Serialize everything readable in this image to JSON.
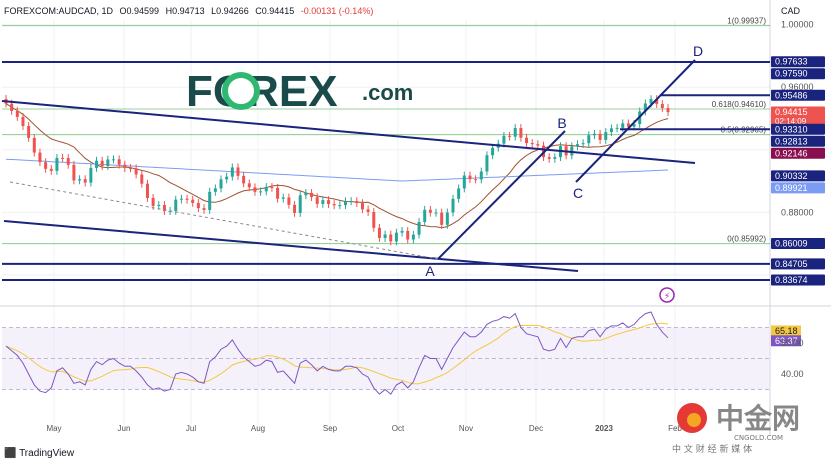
{
  "header": {
    "symbol": "FOREXCOM:AUDCAD, 1D",
    "open": "O0.94599",
    "high": "H0.94713",
    "low": "L0.94266",
    "close": "C0.94415",
    "change": "-0.00131 (-0.14%)"
  },
  "currency": "CAD",
  "watermark": {
    "brand": "FOREX",
    "suffix": ".com"
  },
  "footer": {
    "brand": "TradingView"
  },
  "cn_logo": {
    "name": "中金网",
    "domain": "CNGOLD.COM",
    "tagline": "中 文 财 经 新 媒 体"
  },
  "colors": {
    "candle_up": "#26a69a",
    "candle_down": "#ef5350",
    "trendline": "#1a237e",
    "ma_brown": "#a0522d",
    "ma_blue": "#7b9cf2",
    "rsi": "#7e57c2",
    "rsi_ma": "#f5c842",
    "fib": "#4caf50"
  },
  "chart_data": {
    "type": "candlestick",
    "x_ticks": [
      "May",
      "Jun",
      "Jul",
      "Aug",
      "Sep",
      "Oct",
      "Nov",
      "Dec",
      "2023",
      "Feb"
    ],
    "y_ticks": [
      "1.00000",
      "0.96000",
      "0.88000"
    ],
    "y_range": [
      0.822,
      1.003
    ],
    "price_labels": [
      {
        "text": "0.97633",
        "value": 0.97633,
        "bg": "#1a237e"
      },
      {
        "text": "0.97590",
        "value": 0.9759,
        "bg": "#1a237e"
      },
      {
        "text": "0.95486",
        "value": 0.95486,
        "bg": "#1a237e"
      },
      {
        "text": "0.94415",
        "value": 0.94415,
        "bg": "#ef5350",
        "sub": "02:14:09"
      },
      {
        "text": "0.93310",
        "value": 0.9331,
        "bg": "#1a237e"
      },
      {
        "text": "0.92813",
        "value": 0.92813,
        "bg": "#1a237e"
      },
      {
        "text": "0.92146",
        "value": 0.92146,
        "bg": "#880e4f"
      },
      {
        "text": "0.90332",
        "value": 0.90332,
        "bg": "#1a237e"
      },
      {
        "text": "0.89921",
        "value": 0.89921,
        "bg": "#7b9cf2"
      },
      {
        "text": "0.86009",
        "value": 0.86009,
        "bg": "#1a237e"
      },
      {
        "text": "0.84705",
        "value": 0.84705,
        "bg": "#1a237e"
      },
      {
        "text": "0.83674",
        "value": 0.83674,
        "bg": "#1a237e"
      }
    ],
    "fib_levels": [
      {
        "label": "1(0.99937)",
        "value": 0.99937
      },
      {
        "label": "0.618(0.94610)",
        "value": 0.9461
      },
      {
        "label": "0.5(0.92965)",
        "value": 0.92965
      },
      {
        "label": "0(0.85992)",
        "value": 0.85992
      }
    ],
    "wave_labels": [
      "A",
      "B",
      "C",
      "D"
    ],
    "rsi": {
      "ticks": [
        "60.00",
        "40.00"
      ],
      "range": [
        20,
        80
      ],
      "labels": [
        {
          "text": "65.18",
          "value": 65.18,
          "bg": "#f5c842"
        },
        {
          "text": "63.37",
          "value": 63.37,
          "bg": "#7e57c2"
        }
      ]
    },
    "close_path": [
      0.9495,
      0.9448,
      0.941,
      0.9352,
      0.9276,
      0.9182,
      0.9121,
      0.9078,
      0.9065,
      0.9148,
      0.9147,
      0.9104,
      0.9004,
      0.9012,
      0.899,
      0.9084,
      0.913,
      0.9096,
      0.9138,
      0.9139,
      0.9105,
      0.9083,
      0.9081,
      0.9042,
      0.8983,
      0.8892,
      0.8841,
      0.8847,
      0.8808,
      0.8809,
      0.8881,
      0.8887,
      0.888,
      0.886,
      0.8827,
      0.8815,
      0.8931,
      0.8953,
      0.9011,
      0.9028,
      0.9087,
      0.9033,
      0.8985,
      0.896,
      0.8931,
      0.8934,
      0.8962,
      0.8956,
      0.8887,
      0.8895,
      0.8848,
      0.8796,
      0.8909,
      0.8924,
      0.8897,
      0.8854,
      0.8878,
      0.8853,
      0.8845,
      0.8846,
      0.8871,
      0.8872,
      0.8859,
      0.8819,
      0.8802,
      0.8701,
      0.8636,
      0.8658,
      0.8614,
      0.867,
      0.8681,
      0.8626,
      0.8657,
      0.8738,
      0.8816,
      0.8797,
      0.8798,
      0.872,
      0.8799,
      0.8886,
      0.8953,
      0.9035,
      0.9012,
      0.901,
      0.9061,
      0.9165,
      0.9213,
      0.9239,
      0.9289,
      0.9284,
      0.9339,
      0.9277,
      0.9243,
      0.9236,
      0.9227,
      0.9153,
      0.9142,
      0.9153,
      0.9223,
      0.9164,
      0.9222,
      0.9236,
      0.9242,
      0.9293,
      0.9302,
      0.9263,
      0.9313,
      0.9337,
      0.934,
      0.9369,
      0.9348,
      0.9365,
      0.9445,
      0.9496,
      0.9524,
      0.9493,
      0.9467,
      0.9441
    ],
    "rsi_path": [
      58,
      55,
      52,
      47,
      40,
      33,
      29,
      28,
      31,
      42,
      44,
      40,
      34,
      35,
      33,
      43,
      48,
      46,
      49,
      50,
      47,
      45,
      45,
      42,
      38,
      33,
      30,
      31,
      29,
      30,
      40,
      41,
      40,
      38,
      35,
      34,
      48,
      51,
      56,
      58,
      62,
      56,
      51,
      48,
      45,
      46,
      49,
      48,
      41,
      42,
      38,
      34,
      47,
      49,
      46,
      42,
      45,
      43,
      42,
      42,
      45,
      45,
      44,
      40,
      38,
      31,
      27,
      30,
      27,
      33,
      35,
      31,
      35,
      44,
      52,
      50,
      50,
      43,
      50,
      57,
      62,
      67,
      64,
      64,
      67,
      72,
      74,
      75,
      77,
      76,
      79,
      70,
      66,
      65,
      64,
      56,
      55,
      56,
      63,
      57,
      63,
      64,
      64,
      68,
      69,
      64,
      69,
      71,
      71,
      73,
      70,
      72,
      76,
      79,
      80,
      72,
      67,
      63.37
    ]
  }
}
